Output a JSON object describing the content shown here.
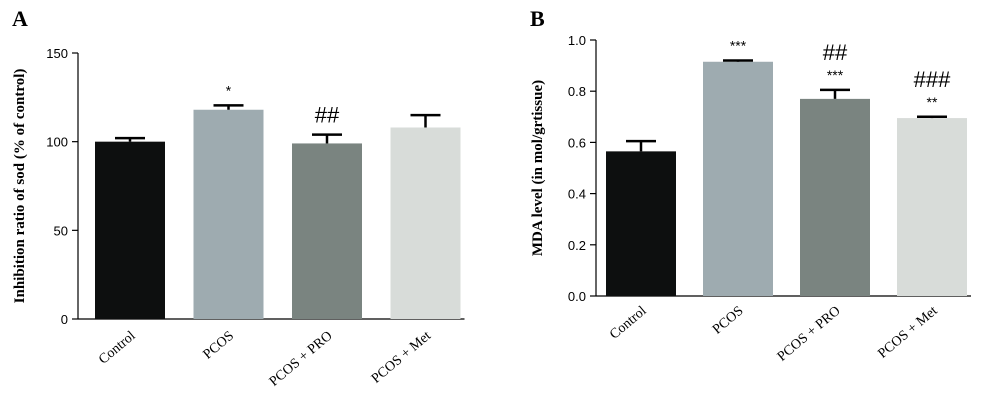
{
  "chart_data": [
    {
      "type": "bar",
      "panel_label": "A",
      "ylabel": "Inhibition ratio of sod (% of control)",
      "xlabel": "",
      "ylim": [
        0,
        150
      ],
      "yticks": [
        "0",
        "50",
        "100",
        "150"
      ],
      "categories": [
        "Control",
        "PCOS",
        "PCOS + PRO",
        "PCOS + Met"
      ],
      "values": [
        100,
        118,
        99,
        108
      ],
      "errors": [
        2,
        2.5,
        5,
        7
      ],
      "annotations": [
        {
          "category": "PCOS",
          "text": "*",
          "kind": "star"
        },
        {
          "category": "PCOS + PRO",
          "text": "##",
          "kind": "hash"
        }
      ],
      "colors": [
        "#0d0f0f",
        "#9eabb0",
        "#7a8480",
        "#d8dcd9"
      ],
      "grid": false
    },
    {
      "type": "bar",
      "panel_label": "B",
      "ylabel": "MDA level (in mol/grtissue)",
      "xlabel": "",
      "ylim": [
        0,
        1.0
      ],
      "yticks": [
        "0.0",
        "0.2",
        "0.4",
        "0.6",
        "0.8",
        "1.0"
      ],
      "categories": [
        "Control",
        "PCOS",
        "PCOS + PRO",
        "PCOS + Met"
      ],
      "values": [
        0.565,
        0.915,
        0.77,
        0.695
      ],
      "errors": [
        0.04,
        0.005,
        0.035,
        0.005
      ],
      "annotations": [
        {
          "category": "PCOS",
          "text": "***",
          "kind": "star"
        },
        {
          "category": "PCOS + PRO",
          "text": "***",
          "kind": "star"
        },
        {
          "category": "PCOS + PRO",
          "text": "##",
          "kind": "hash"
        },
        {
          "category": "PCOS + Met",
          "text": "**",
          "kind": "star"
        },
        {
          "category": "PCOS + Met",
          "text": "###",
          "kind": "hash"
        }
      ],
      "colors": [
        "#0d0f0f",
        "#9eabb0",
        "#7a8480",
        "#d8dcd9"
      ],
      "grid": false
    }
  ]
}
